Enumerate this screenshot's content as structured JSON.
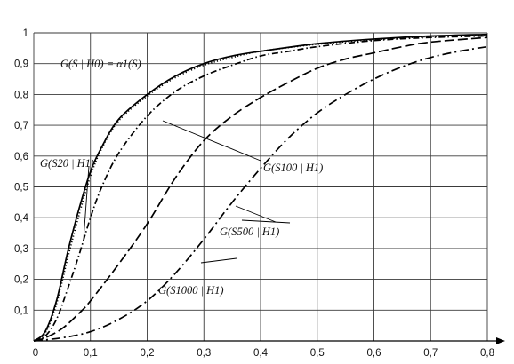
{
  "chart_data": {
    "type": "line",
    "title": "",
    "xlabel": "",
    "ylabel": "",
    "xlim": [
      0,
      0.8
    ],
    "ylim": [
      0,
      1
    ],
    "grid": true,
    "x_ticks": [
      0,
      0.1,
      0.2,
      0.3,
      0.4,
      0.5,
      0.6,
      0.7,
      0.8
    ],
    "y_ticks": [
      0,
      0.1,
      0.2,
      0.3,
      0.4,
      0.5,
      0.6,
      0.7,
      0.8,
      0.9,
      1
    ],
    "x_tick_labels": [
      "0",
      "0,1",
      "0,2",
      "0,3",
      "0,4",
      "0,5",
      "0,6",
      "0,7",
      "0,8"
    ],
    "y_tick_labels": [
      "0",
      "0,1",
      "0,2",
      "0,3",
      "0,4",
      "0,5",
      "0,6",
      "0,7",
      "0,8",
      "0,9",
      "1"
    ],
    "series": [
      {
        "dash": "solid",
        "x": [
          0,
          0.02,
          0.04,
          0.06,
          0.08,
          0.1,
          0.12,
          0.15,
          0.2,
          0.25,
          0.3,
          0.35,
          0.4,
          0.5,
          0.6,
          0.7,
          0.8
        ],
        "y": [
          0,
          0.03,
          0.13,
          0.29,
          0.43,
          0.55,
          0.63,
          0.72,
          0.8,
          0.86,
          0.9,
          0.925,
          0.94,
          0.965,
          0.98,
          0.99,
          0.995
        ]
      },
      {
        "dash": "dotted",
        "x": [
          0,
          0.02,
          0.04,
          0.06,
          0.08,
          0.1,
          0.12,
          0.15,
          0.2,
          0.25,
          0.3,
          0.35,
          0.4,
          0.5,
          0.6,
          0.7,
          0.8
        ],
        "y": [
          0,
          0.025,
          0.12,
          0.27,
          0.41,
          0.535,
          0.625,
          0.715,
          0.795,
          0.855,
          0.895,
          0.92,
          0.94,
          0.963,
          0.978,
          0.988,
          0.993
        ]
      },
      {
        "dash": "dashdot",
        "x": [
          0,
          0.02,
          0.04,
          0.06,
          0.08,
          0.1,
          0.12,
          0.15,
          0.2,
          0.25,
          0.3,
          0.35,
          0.4,
          0.45,
          0.5,
          0.6,
          0.7,
          0.8
        ],
        "y": [
          0,
          0.015,
          0.07,
          0.17,
          0.28,
          0.4,
          0.5,
          0.61,
          0.73,
          0.81,
          0.86,
          0.895,
          0.925,
          0.94,
          0.955,
          0.975,
          0.985,
          0.99
        ]
      },
      {
        "dash": "dashed",
        "x": [
          0,
          0.02,
          0.05,
          0.08,
          0.1,
          0.15,
          0.2,
          0.25,
          0.3,
          0.35,
          0.4,
          0.45,
          0.5,
          0.55,
          0.6,
          0.65,
          0.7,
          0.8
        ],
        "y": [
          0,
          0.01,
          0.04,
          0.09,
          0.13,
          0.25,
          0.38,
          0.53,
          0.65,
          0.73,
          0.79,
          0.84,
          0.885,
          0.915,
          0.935,
          0.955,
          0.97,
          0.985
        ]
      },
      {
        "dash": "dashdotlong",
        "x": [
          0,
          0.05,
          0.1,
          0.15,
          0.2,
          0.25,
          0.3,
          0.35,
          0.4,
          0.45,
          0.5,
          0.55,
          0.6,
          0.65,
          0.7,
          0.75,
          0.8
        ],
        "y": [
          0,
          0.01,
          0.03,
          0.07,
          0.13,
          0.22,
          0.33,
          0.45,
          0.56,
          0.66,
          0.74,
          0.8,
          0.85,
          0.89,
          0.92,
          0.94,
          0.955
        ]
      }
    ]
  },
  "annotations": {
    "h0": "G(S | H0) = α1(S)",
    "s20": "G(S20 | H1)",
    "s100": "G(S100 | H1)",
    "s500": "G(S500 | H1)",
    "s1000": "G(S1000 | H1)"
  }
}
